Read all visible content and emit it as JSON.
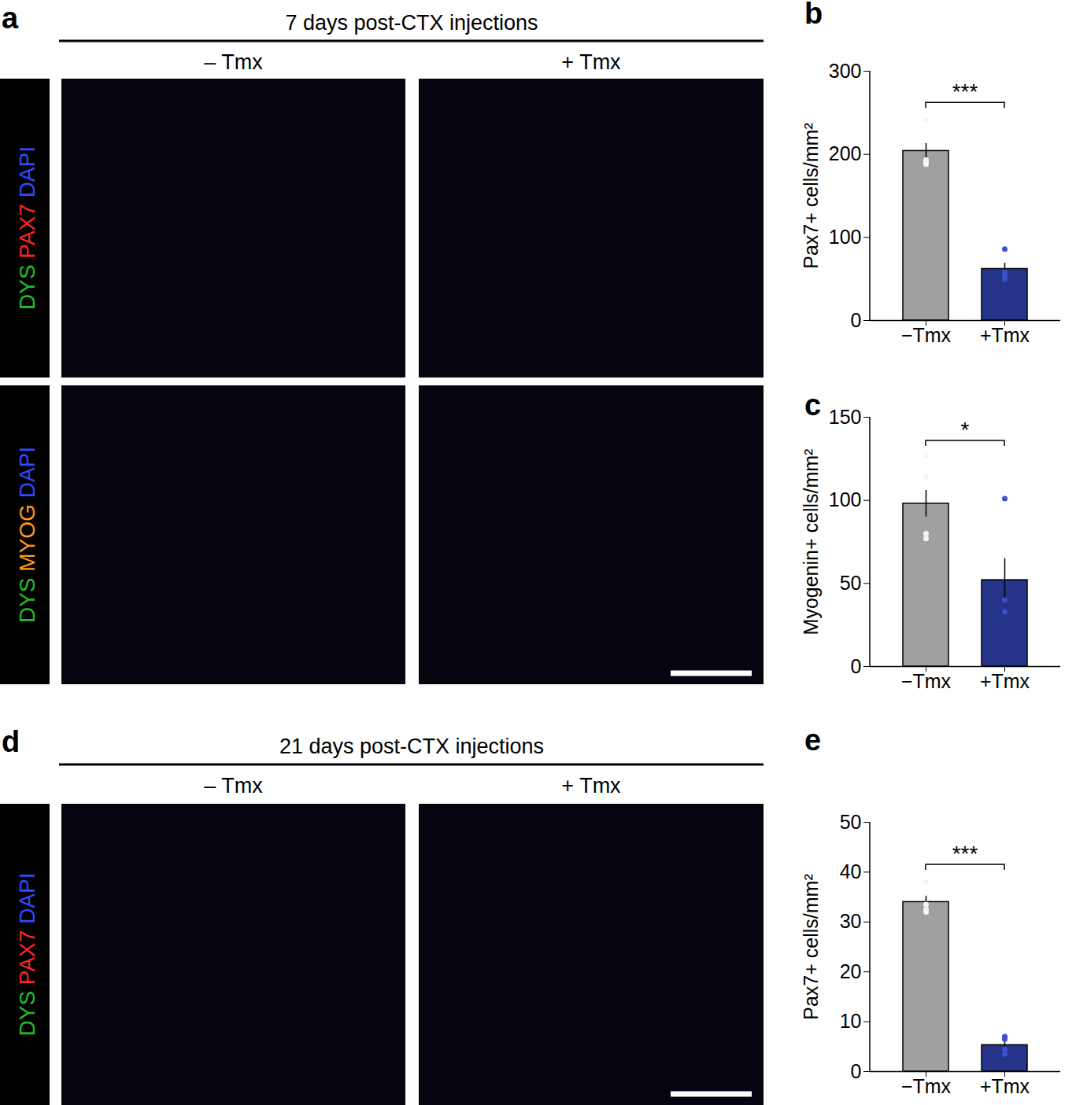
{
  "chart_data": [
    {
      "type": "bar",
      "panel_label": "b",
      "y_label": "Pax7+ cells/mm²",
      "categories": [
        "−Tmx",
        "+Tmx"
      ],
      "values": [
        204,
        62
      ],
      "error": [
        9,
        7
      ],
      "points": [
        [
          241,
          193,
          190,
          188
        ],
        [
          86,
          58,
          54,
          50
        ]
      ],
      "colors": [
        "#a0a0a0",
        "#253488"
      ],
      "ylim": [
        0,
        300
      ],
      "yticks": [
        0,
        100,
        200,
        300
      ],
      "annotation": "***"
    },
    {
      "type": "bar",
      "panel_label": "c",
      "y_label": "Myogenin+ cells/mm²",
      "categories": [
        "−Tmx",
        "+Tmx"
      ],
      "values": [
        98,
        52
      ],
      "error": [
        8,
        13
      ],
      "points": [
        [
          127,
          114,
          80,
          77
        ],
        [
          101,
          40,
          33
        ]
      ],
      "colors": [
        "#a0a0a0",
        "#253488"
      ],
      "ylim": [
        0,
        150
      ],
      "yticks": [
        0,
        50,
        100,
        150
      ],
      "annotation": "*"
    },
    {
      "type": "bar",
      "panel_label": "e",
      "y_label": "Pax7+ cells/mm²",
      "categories": [
        "−Tmx",
        "+Tmx"
      ],
      "values": [
        34,
        5.3
      ],
      "error": [
        1.2,
        1
      ],
      "points": [
        [
          38,
          33.5,
          32.5,
          32
        ],
        [
          7,
          6.5,
          4.5,
          3.5
        ]
      ],
      "colors": [
        "#a0a0a0",
        "#253488"
      ],
      "ylim": [
        0,
        50
      ],
      "yticks": [
        0,
        10,
        20,
        30,
        40,
        50
      ],
      "annotation": "***"
    }
  ],
  "image_panels": [
    {
      "panel_label": "a",
      "title": "7 days post-CTX injections",
      "columns": [
        "– Tmx",
        "+ Tmx"
      ],
      "rows": [
        {
          "stains": [
            {
              "name": "DAPI",
              "color": "#2f4bff"
            },
            {
              "name": "PAX7",
              "color": "#ff2424"
            },
            {
              "name": "DYS",
              "color": "#22c022"
            }
          ]
        },
        {
          "stains": [
            {
              "name": "DAPI",
              "color": "#2f4bff"
            },
            {
              "name": "MYOG",
              "color": "#ff9a1a"
            },
            {
              "name": "DYS",
              "color": "#22c022"
            }
          ]
        }
      ]
    },
    {
      "panel_label": "d",
      "title": "21 days post-CTX injections",
      "columns": [
        "– Tmx",
        "+ Tmx"
      ],
      "rows": [
        {
          "stains": [
            {
              "name": "DAPI",
              "color": "#2f4bff"
            },
            {
              "name": "PAX7",
              "color": "#ff2424"
            },
            {
              "name": "DYS",
              "color": "#22c022"
            }
          ]
        }
      ]
    }
  ]
}
